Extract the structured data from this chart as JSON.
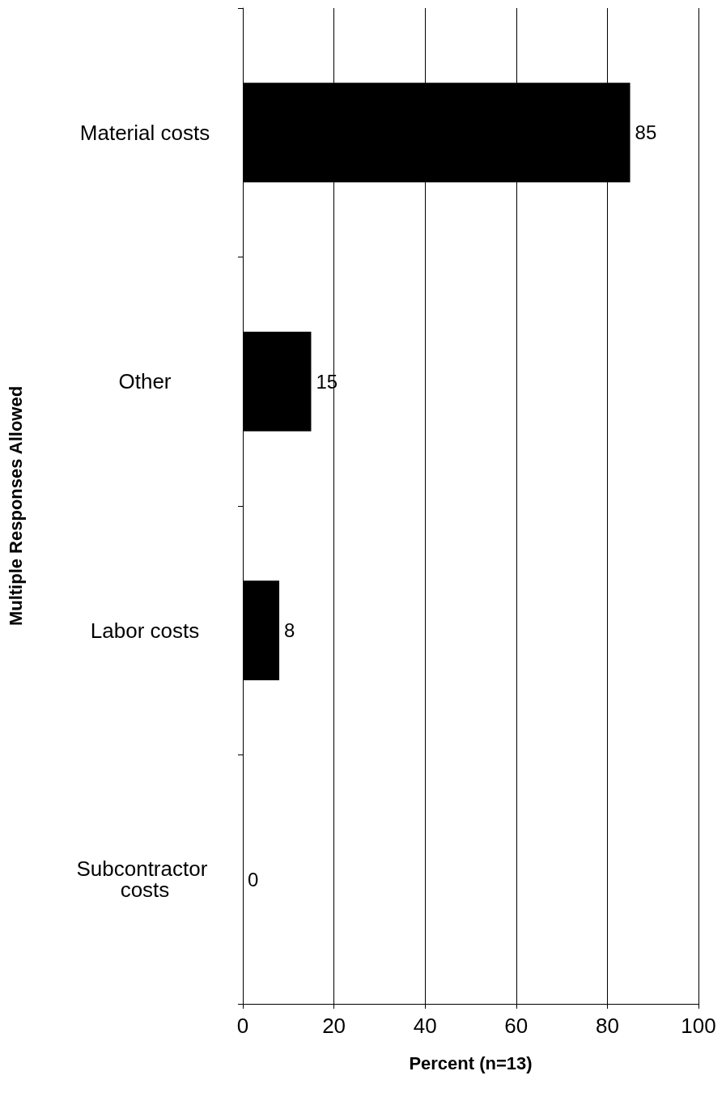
{
  "chart_data": {
    "type": "bar",
    "orientation": "horizontal",
    "xlabel": "Percent (n=13)",
    "ylabel": "Multiple Responses Allowed",
    "categories": [
      "Material costs",
      "Other",
      "Labor costs",
      "Subcontractor costs"
    ],
    "values": [
      85,
      15,
      8,
      0
    ],
    "color": "#000000",
    "data_labels": true,
    "xlim": [
      0,
      100
    ],
    "xticks": [
      0,
      20,
      40,
      60,
      80,
      100
    ],
    "grid": "x"
  }
}
